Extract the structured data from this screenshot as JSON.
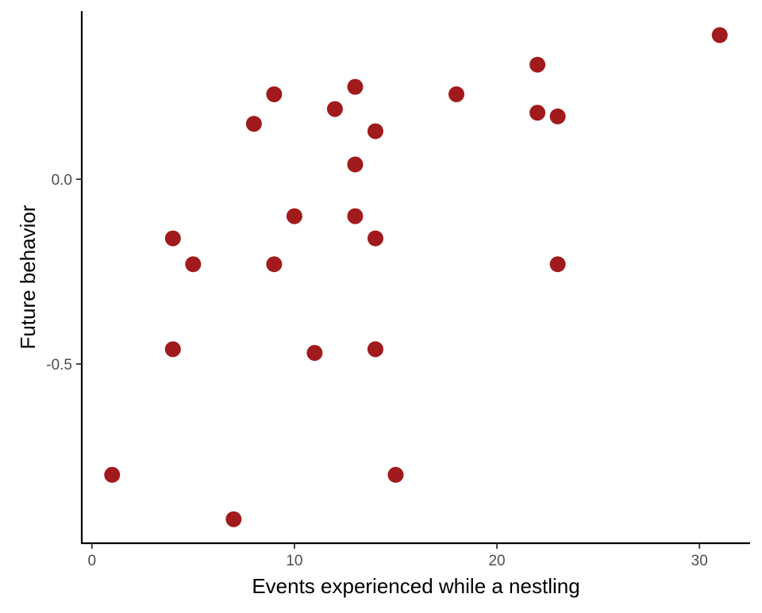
{
  "chart_data": {
    "type": "scatter",
    "title": "",
    "xlabel": "Events experienced while a nestling",
    "ylabel": "Future behavior",
    "xlim": [
      -0.5,
      32.5
    ],
    "ylim": [
      -0.985,
      0.455
    ],
    "x_ticks": [
      0,
      10,
      20,
      30
    ],
    "x_tick_labels": [
      "0",
      "10",
      "20",
      "30"
    ],
    "y_ticks": [
      0.0,
      -0.5
    ],
    "y_tick_labels": [
      "0.0",
      "-0.5"
    ],
    "grid": false,
    "legend": "none",
    "point_color": "#A11A1C",
    "series": [
      {
        "points": [
          {
            "x": 1,
            "y": -0.8
          },
          {
            "x": 4,
            "y": -0.16
          },
          {
            "x": 4,
            "y": -0.46
          },
          {
            "x": 5,
            "y": -0.23
          },
          {
            "x": 7,
            "y": -0.92
          },
          {
            "x": 8,
            "y": 0.15
          },
          {
            "x": 9,
            "y": 0.23
          },
          {
            "x": 9,
            "y": -0.23
          },
          {
            "x": 10,
            "y": -0.1
          },
          {
            "x": 11,
            "y": -0.47
          },
          {
            "x": 12,
            "y": 0.19
          },
          {
            "x": 13,
            "y": 0.25
          },
          {
            "x": 13,
            "y": 0.04
          },
          {
            "x": 13,
            "y": -0.1
          },
          {
            "x": 14,
            "y": 0.13
          },
          {
            "x": 14,
            "y": -0.16
          },
          {
            "x": 14,
            "y": -0.46
          },
          {
            "x": 15,
            "y": -0.8
          },
          {
            "x": 18,
            "y": 0.23
          },
          {
            "x": 22,
            "y": 0.31
          },
          {
            "x": 22,
            "y": 0.18
          },
          {
            "x": 23,
            "y": 0.17
          },
          {
            "x": 23,
            "y": -0.23
          },
          {
            "x": 31,
            "y": 0.39
          }
        ]
      }
    ]
  }
}
